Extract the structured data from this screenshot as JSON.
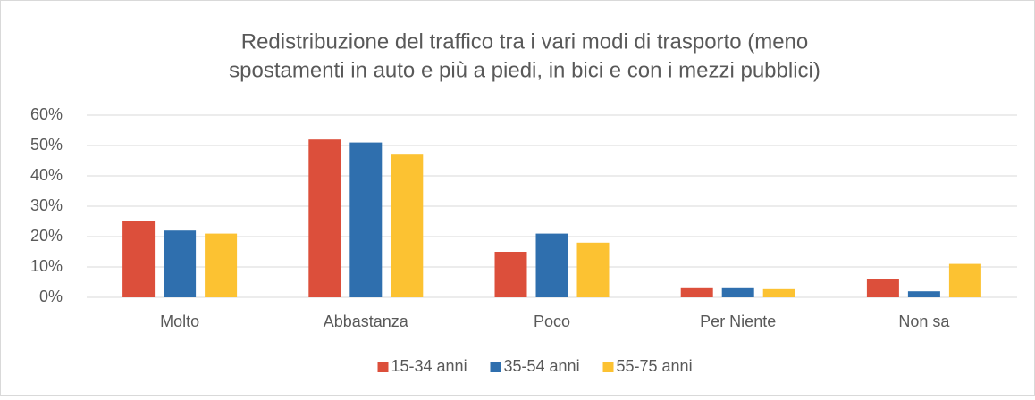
{
  "chart_data": {
    "type": "bar",
    "title": [
      "Redistribuzione del traffico tra i vari modi di trasporto (meno",
      "spostamenti in auto e più a piedi, in bici e con i mezzi pubblici)"
    ],
    "categories": [
      "Molto",
      "Abbastanza",
      "Poco",
      "Per Niente",
      "Non sa"
    ],
    "series": [
      {
        "name": "15-34 anni",
        "color": "#dc4f3b",
        "values": [
          25,
          52,
          15,
          3,
          6
        ]
      },
      {
        "name": "35-54 anni",
        "color": "#2f6fae",
        "values": [
          22,
          51,
          21,
          3,
          2
        ]
      },
      {
        "name": "55-75 anni",
        "color": "#fcc232",
        "values": [
          21,
          47,
          18,
          2.7,
          11
        ]
      }
    ],
    "ylim": [
      0,
      60
    ],
    "yticks": [
      {
        "value": 0,
        "label": "0%"
      },
      {
        "value": 10,
        "label": "10%"
      },
      {
        "value": 20,
        "label": "20%"
      },
      {
        "value": 30,
        "label": "30%"
      },
      {
        "value": 40,
        "label": "40%"
      },
      {
        "value": 50,
        "label": "50%"
      },
      {
        "value": 60,
        "label": "60%"
      }
    ],
    "grid": true,
    "legend": "bottom"
  }
}
